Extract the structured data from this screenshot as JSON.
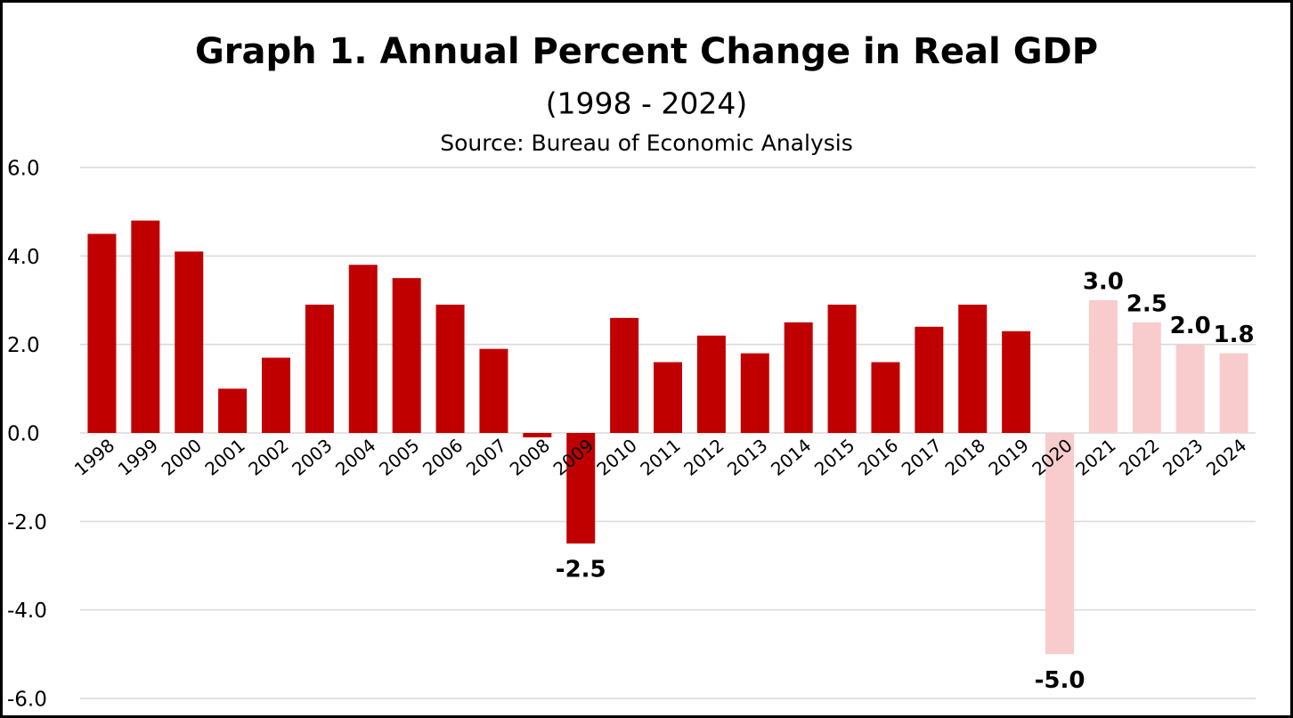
{
  "chart_data": {
    "type": "bar",
    "title": "Graph 1. Annual Percent Change in Real GDP",
    "subtitle": "(1998 - 2024)",
    "source": "Source: Bureau of Economic Analysis",
    "categories": [
      "1998",
      "1999",
      "2000",
      "2001",
      "2002",
      "2003",
      "2004",
      "2005",
      "2006",
      "2007",
      "2008",
      "2009",
      "2010",
      "2011",
      "2012",
      "2013",
      "2014",
      "2015",
      "2016",
      "2017",
      "2018",
      "2019",
      "2020",
      "2021",
      "2022",
      "2023",
      "2024"
    ],
    "values": [
      4.5,
      4.8,
      4.1,
      1.0,
      1.7,
      2.9,
      3.8,
      3.5,
      2.9,
      1.9,
      -0.1,
      -2.5,
      2.6,
      1.6,
      2.2,
      1.8,
      2.5,
      2.9,
      1.6,
      2.4,
      2.9,
      2.3,
      -5.0,
      3.0,
      2.5,
      2.0,
      1.8
    ],
    "value_labels": [
      null,
      null,
      null,
      null,
      null,
      null,
      null,
      null,
      null,
      null,
      null,
      "-2.5",
      null,
      null,
      null,
      null,
      null,
      null,
      null,
      null,
      null,
      null,
      "-5.0",
      "3.0",
      "2.5",
      "2.0",
      "1.8"
    ],
    "colors": [
      "#c00000",
      "#c00000",
      "#c00000",
      "#c00000",
      "#c00000",
      "#c00000",
      "#c00000",
      "#c00000",
      "#c00000",
      "#c00000",
      "#c00000",
      "#c00000",
      "#c00000",
      "#c00000",
      "#c00000",
      "#c00000",
      "#c00000",
      "#c00000",
      "#c00000",
      "#c00000",
      "#c00000",
      "#c00000",
      "#f8cbcd",
      "#f8cbcd",
      "#f8cbcd",
      "#f8cbcd",
      "#f8cbcd"
    ],
    "ylim": [
      -6,
      6
    ],
    "yticks": [
      {
        "value": -6,
        "label": "-6.0"
      },
      {
        "value": -4,
        "label": "-4.0"
      },
      {
        "value": -2,
        "label": "-2.0"
      },
      {
        "value": 0,
        "label": "0.0"
      },
      {
        "value": 2,
        "label": "2.0"
      },
      {
        "value": 4,
        "label": "4.0"
      },
      {
        "value": 6,
        "label": "6.0"
      }
    ],
    "grid": true
  }
}
